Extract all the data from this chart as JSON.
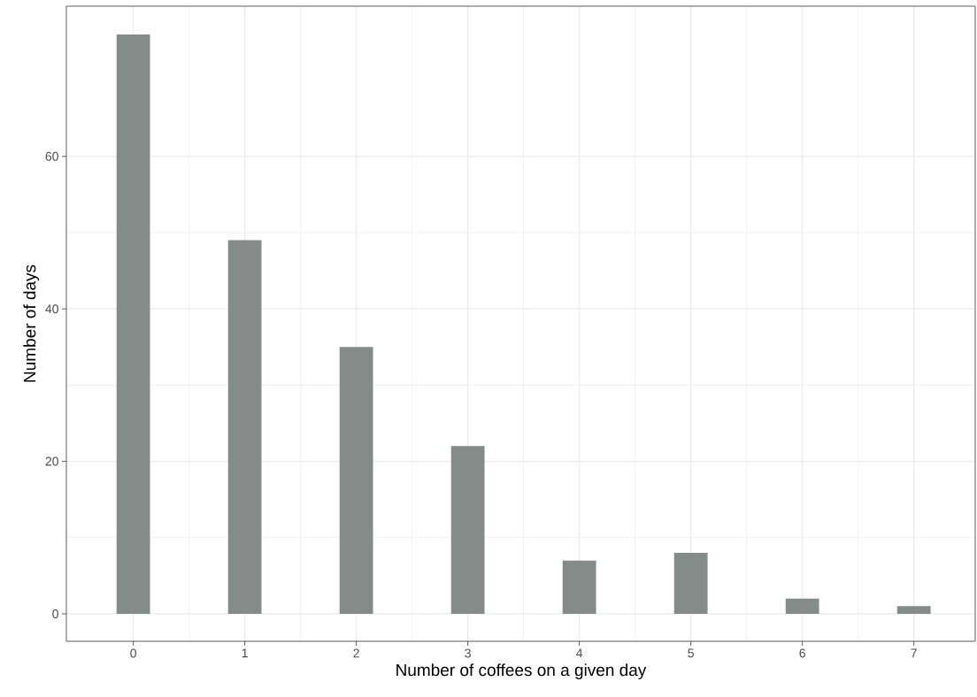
{
  "chart_data": {
    "type": "bar",
    "xlabel": "Number of coffees on a given day",
    "ylabel": "Number of days",
    "x": [
      0,
      1,
      2,
      3,
      4,
      5,
      6,
      7
    ],
    "values": [
      76,
      49,
      35,
      22,
      7,
      8,
      2,
      1
    ],
    "color": "#848c8a",
    "xlim": [
      -0.6,
      7.55
    ],
    "ylim": [
      -3.6,
      79.7
    ],
    "xticks": [
      0,
      1,
      2,
      3,
      4,
      5,
      6,
      7
    ],
    "yticks": [
      0,
      20,
      40,
      60
    ],
    "grid": true
  }
}
